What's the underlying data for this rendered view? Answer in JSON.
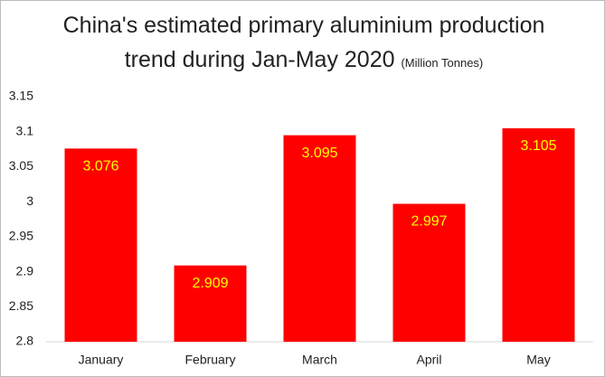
{
  "chart_data": {
    "type": "bar",
    "title": "China's estimated primary aluminium production trend during Jan-May 2020",
    "subtitle": "(Million Tonnes)",
    "categories": [
      "January",
      "February",
      "March",
      "April",
      "May"
    ],
    "values": [
      3.076,
      2.909,
      3.095,
      2.997,
      3.105
    ],
    "color": "#ff0000",
    "label_color": "#ffff00",
    "ylim": [
      2.8,
      3.15
    ],
    "yticks": [
      2.8,
      2.85,
      2.9,
      2.95,
      3,
      3.05,
      3.1,
      3.15
    ],
    "grid": false
  }
}
